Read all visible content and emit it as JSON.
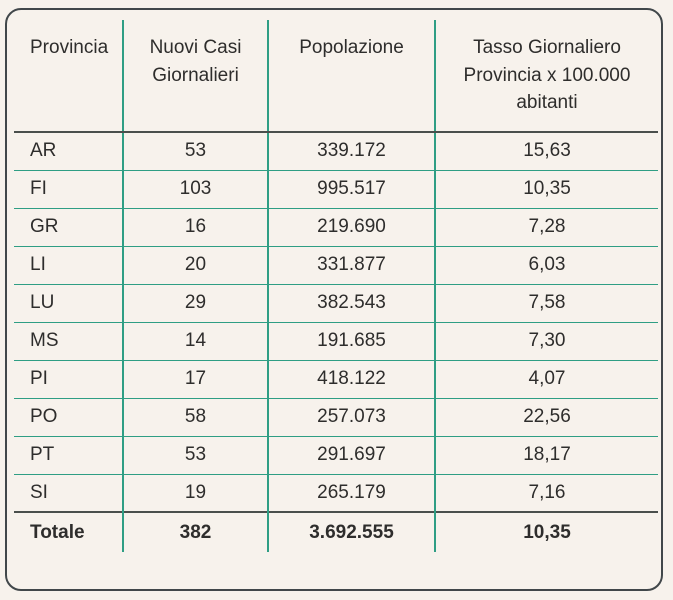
{
  "chart_data": {
    "type": "table",
    "columns": [
      "Provincia",
      "Nuovi Casi Giornalieri",
      "Popolazione",
      "Tasso Giornaliero Provincia x 100.000 abitanti"
    ],
    "rows": [
      [
        "AR",
        "53",
        "339.172",
        "15,63"
      ],
      [
        "FI",
        "103",
        "995.517",
        "10,35"
      ],
      [
        "GR",
        "16",
        "219.690",
        "7,28"
      ],
      [
        "LI",
        "20",
        "331.877",
        "6,03"
      ],
      [
        "LU",
        "29",
        "382.543",
        "7,58"
      ],
      [
        "MS",
        "14",
        "191.685",
        "7,30"
      ],
      [
        "PI",
        "17",
        "418.122",
        "4,07"
      ],
      [
        "PO",
        "58",
        "257.073",
        "22,56"
      ],
      [
        "PT",
        "53",
        "291.697",
        "18,17"
      ],
      [
        "SI",
        "19",
        "265.179",
        "7,16"
      ]
    ],
    "total_row": [
      "Totale",
      "382",
      "3.692.555",
      "10,35"
    ]
  },
  "colors": {
    "background": "#f7f2ec",
    "grid_teal": "#2f9e84",
    "divider_dark": "#4a4f4c",
    "card_border": "#41474a",
    "text": "#2e2d2c"
  }
}
